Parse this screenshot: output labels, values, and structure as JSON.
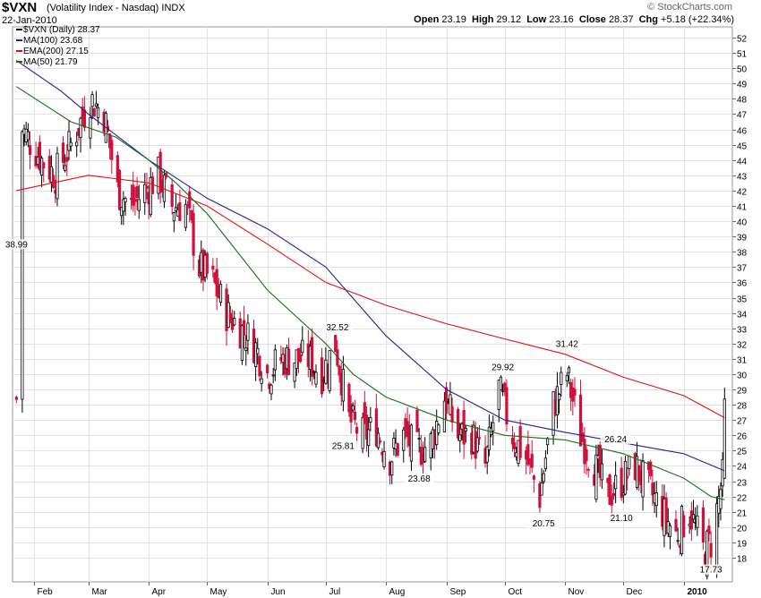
{
  "header": {
    "symbol": "$VXN",
    "description": "(Volatility Index - Nasdaq)",
    "exchange": "INDX",
    "date": "22-Jan-2010",
    "brand": "© StockCharts.com",
    "open_label": "Open",
    "open": "23.19",
    "high_label": "High",
    "high": "29.12",
    "low_label": "Low",
    "low": "23.16",
    "close_label": "Close",
    "close": "28.37",
    "chg_label": "Chg",
    "chg": "+5.18 (+22.34%)"
  },
  "legend": [
    {
      "label": "$VXN (Daily) 28.37",
      "color": "#000000"
    },
    {
      "label": "MA(100) 23.68",
      "color": "#1f1f9a"
    },
    {
      "label": "EMA(200) 27.15",
      "color": "#e01010"
    },
    {
      "label": "MA(50) 21.79",
      "color": "#1a6b1a"
    }
  ],
  "chart_data": {
    "type": "candlestick",
    "x_labels": [
      "Feb",
      "Mar",
      "Apr",
      "May",
      "Jun",
      "Jul",
      "Aug",
      "Sep",
      "Oct",
      "Nov",
      "Dec",
      "2010"
    ],
    "y_ticks": [
      18,
      19,
      20,
      21,
      22,
      23,
      24,
      25,
      26,
      27,
      28,
      29,
      30,
      31,
      32,
      33,
      34,
      35,
      36,
      37,
      38,
      39,
      40,
      41,
      42,
      43,
      44,
      45,
      46,
      47,
      48,
      49,
      50,
      51,
      52
    ],
    "ylim": [
      17.5,
      52.5
    ],
    "grid": true,
    "close_path": [
      [
        "2009-01-26",
        46
      ],
      [
        "2009-02-05",
        44
      ],
      [
        "2009-02-12",
        43
      ],
      [
        "2009-02-20",
        45
      ],
      [
        "2009-03-02",
        48
      ],
      [
        "2009-03-09",
        47
      ],
      [
        "2009-03-16",
        42
      ],
      [
        "2009-03-23",
        41
      ],
      [
        "2009-03-30",
        42
      ],
      [
        "2009-04-06",
        43
      ],
      [
        "2009-04-13",
        41
      ],
      [
        "2009-04-20",
        41
      ],
      [
        "2009-04-27",
        37
      ],
      [
        "2009-05-04",
        36
      ],
      [
        "2009-05-11",
        34
      ],
      [
        "2009-05-18",
        33
      ],
      [
        "2009-05-25",
        32
      ],
      [
        "2009-06-01",
        30
      ],
      [
        "2009-06-08",
        31
      ],
      [
        "2009-06-15",
        31
      ],
      [
        "2009-06-22",
        31
      ],
      [
        "2009-06-29",
        30
      ],
      [
        "2009-07-06",
        32
      ],
      [
        "2009-07-13",
        27
      ],
      [
        "2009-07-20",
        26
      ],
      [
        "2009-07-27",
        26.5
      ],
      [
        "2009-08-03",
        24.5
      ],
      [
        "2009-08-10",
        26
      ],
      [
        "2009-08-17",
        25
      ],
      [
        "2009-08-24",
        25.5
      ],
      [
        "2009-08-31",
        28.5
      ],
      [
        "2009-09-07",
        26
      ],
      [
        "2009-09-14",
        26
      ],
      [
        "2009-09-21",
        24
      ],
      [
        "2009-09-28",
        29
      ],
      [
        "2009-10-05",
        26
      ],
      [
        "2009-10-12",
        24.5
      ],
      [
        "2009-10-19",
        22
      ],
      [
        "2009-10-26",
        28
      ],
      [
        "2009-11-02",
        30
      ],
      [
        "2009-11-09",
        26
      ],
      [
        "2009-11-16",
        24
      ],
      [
        "2009-11-23",
        22
      ],
      [
        "2009-11-30",
        23
      ],
      [
        "2009-12-07",
        24
      ],
      [
        "2009-12-14",
        22.5
      ],
      [
        "2009-12-21",
        21
      ],
      [
        "2009-12-28",
        19.5
      ],
      [
        "2010-01-04",
        21
      ],
      [
        "2010-01-11",
        18.5
      ],
      [
        "2010-01-15",
        19
      ],
      [
        "2010-01-21",
        23.2
      ],
      [
        "2010-01-22",
        28.37
      ]
    ],
    "annotations": [
      {
        "text": "38.99",
        "date": "2009-01-23",
        "value": 38.99
      },
      {
        "text": "32.52",
        "date": "2009-07-07",
        "value": 32.52
      },
      {
        "text": "25.81",
        "date": "2009-07-10",
        "value": 25.81
      },
      {
        "text": "23.68",
        "date": "2009-08-18",
        "value": 23.68
      },
      {
        "text": "29.92",
        "date": "2009-09-30",
        "value": 29.92
      },
      {
        "text": "20.75",
        "date": "2009-10-21",
        "value": 20.75
      },
      {
        "text": "31.42",
        "date": "2009-11-02",
        "value": 31.42
      },
      {
        "text": "26.24",
        "date": "2009-11-27",
        "value": 26.24
      },
      {
        "text": "21.10",
        "date": "2009-11-30",
        "value": 21.1
      },
      {
        "text": "17.73",
        "date": "2010-01-15",
        "value": 17.73
      }
    ],
    "series": [
      {
        "name": "EMA(200)",
        "color": "#e01010",
        "points": [
          [
            "2009-01-23",
            42.0
          ],
          [
            "2009-03-01",
            43.0
          ],
          [
            "2009-04-01",
            42.5
          ],
          [
            "2009-05-01",
            41.0
          ],
          [
            "2009-06-01",
            38.5
          ],
          [
            "2009-07-01",
            36.0
          ],
          [
            "2009-08-01",
            34.5
          ],
          [
            "2009-09-01",
            33.3
          ],
          [
            "2009-10-01",
            32.3
          ],
          [
            "2009-11-01",
            31.3
          ],
          [
            "2009-12-01",
            29.8
          ],
          [
            "2010-01-01",
            28.6
          ],
          [
            "2010-01-22",
            27.15
          ]
        ]
      },
      {
        "name": "MA(100)",
        "color": "#1f1f9a",
        "points": [
          [
            "2009-01-23",
            50.5
          ],
          [
            "2009-02-15",
            48.5
          ],
          [
            "2009-03-01",
            47.0
          ],
          [
            "2009-04-01",
            44.0
          ],
          [
            "2009-05-01",
            41.5
          ],
          [
            "2009-06-01",
            39.5
          ],
          [
            "2009-07-01",
            37.0
          ],
          [
            "2009-08-01",
            32.5
          ],
          [
            "2009-09-01",
            29.0
          ],
          [
            "2009-10-01",
            27.0
          ],
          [
            "2009-11-01",
            26.2
          ],
          [
            "2009-12-01",
            25.5
          ],
          [
            "2010-01-01",
            24.8
          ],
          [
            "2010-01-22",
            23.68
          ]
        ]
      },
      {
        "name": "MA(50)",
        "color": "#1a6b1a",
        "points": [
          [
            "2009-01-23",
            48.8
          ],
          [
            "2009-02-20",
            46.5
          ],
          [
            "2009-03-15",
            45.5
          ],
          [
            "2009-04-01",
            44.0
          ],
          [
            "2009-04-15",
            42.5
          ],
          [
            "2009-05-01",
            40.5
          ],
          [
            "2009-06-01",
            35.5
          ],
          [
            "2009-07-01",
            32.0
          ],
          [
            "2009-07-15",
            30.0
          ],
          [
            "2009-08-01",
            28.5
          ],
          [
            "2009-09-01",
            27.0
          ],
          [
            "2009-10-01",
            26.0
          ],
          [
            "2009-11-01",
            25.7
          ],
          [
            "2009-12-01",
            24.8
          ],
          [
            "2010-01-01",
            23.2
          ],
          [
            "2010-01-15",
            22.0
          ],
          [
            "2010-01-22",
            21.79
          ]
        ]
      }
    ]
  }
}
